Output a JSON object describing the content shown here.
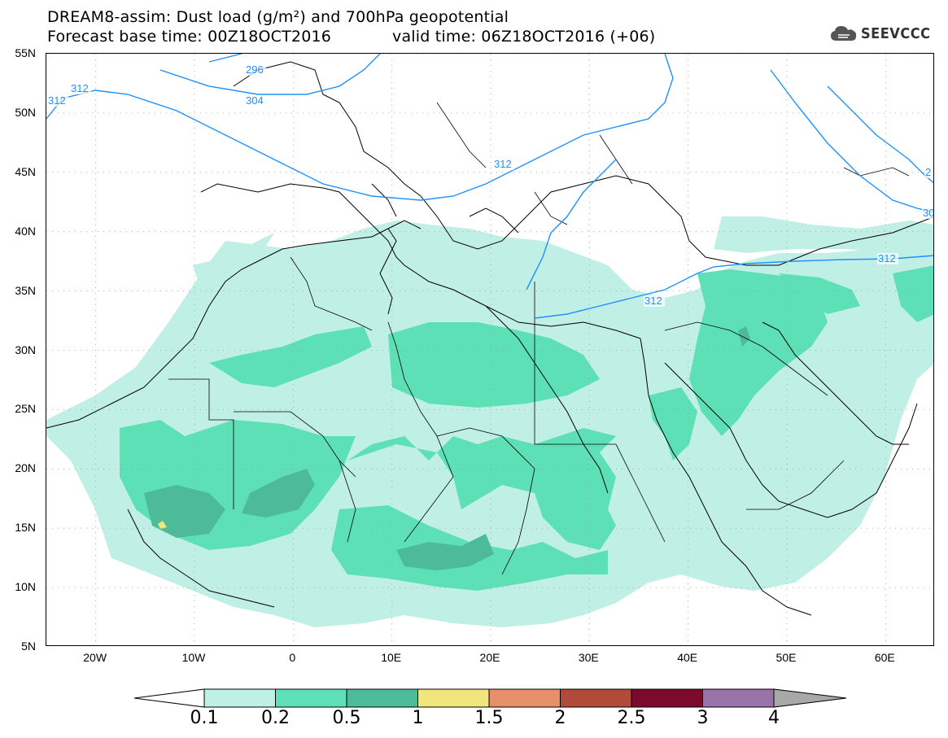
{
  "title": {
    "line1": "DREAM8-assim: Dust load (g/m²) and 700hPa geopotential",
    "line2": "Forecast base time: 00Z18OCT2016",
    "line2b": "valid time: 06Z18OCT2016 (+06)"
  },
  "logo": {
    "text": "SEEVCCC",
    "icon": "cloud-icon"
  },
  "axes": {
    "lat_labels": [
      "55N",
      "50N",
      "45N",
      "40N",
      "35N",
      "30N",
      "25N",
      "20N",
      "15N",
      "10N",
      "5N"
    ],
    "lon_labels": [
      "20W",
      "10W",
      "0",
      "10E",
      "20E",
      "30E",
      "40E",
      "50E",
      "60E"
    ],
    "lon_range": [
      -25,
      65
    ],
    "lat_range": [
      5,
      55
    ]
  },
  "contours": {
    "labels": [
      "312",
      "312",
      "296",
      "304",
      "312",
      "312",
      "312",
      "30",
      "2"
    ],
    "color": "#1e90ff"
  },
  "colorbar": {
    "levels": [
      "0.1",
      "0.2",
      "0.5",
      "1",
      "1.5",
      "2",
      "2.5",
      "3",
      "4"
    ],
    "colors": [
      "#c0efe6",
      "#5ee0b7",
      "#4dba98",
      "#f1e57e",
      "#e5906a",
      "#b04b3c",
      "#7b0a2c",
      "#9a73a8",
      "#a8a8a8"
    ]
  }
}
